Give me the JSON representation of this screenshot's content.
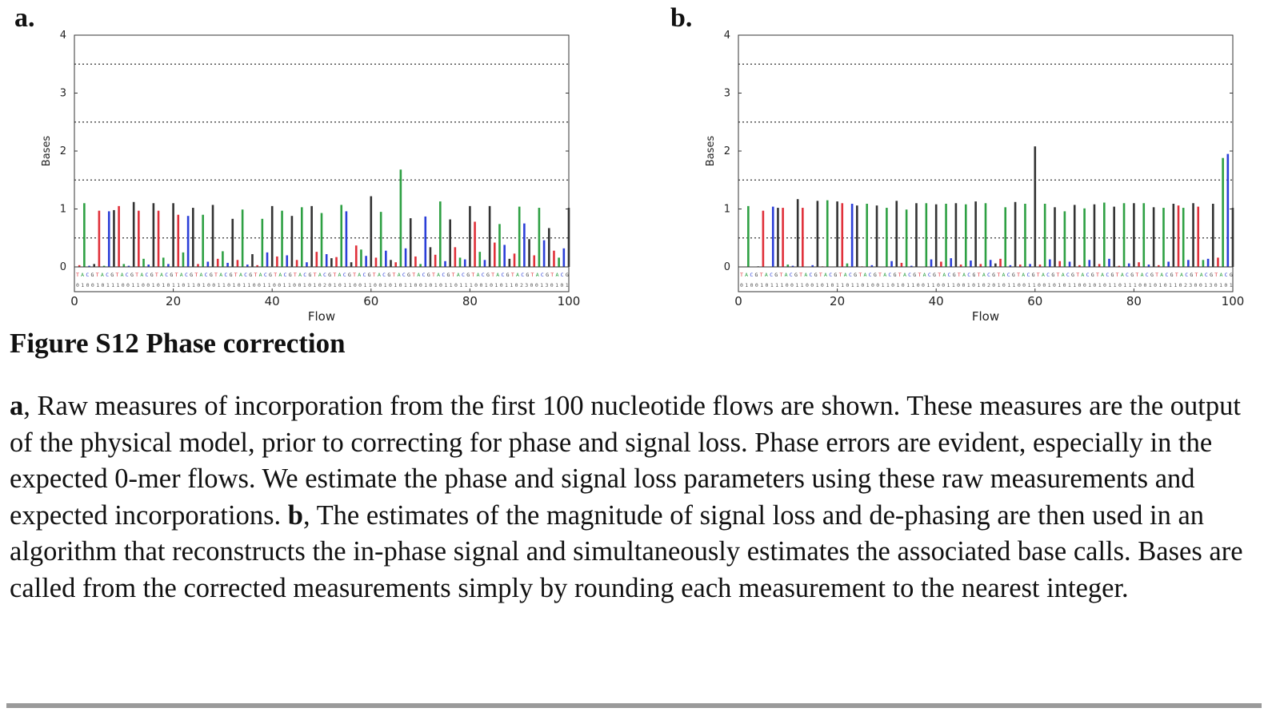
{
  "panels": [
    {
      "letter": "a.",
      "chart_data": {
        "type": "bar",
        "title": "",
        "xlabel": "Flow",
        "ylabel": "Bases",
        "xlim": [
          0,
          100
        ],
        "ylim": [
          0,
          4
        ],
        "xticks": [
          "0",
          "20",
          "40",
          "60",
          "80",
          "100"
        ],
        "yticks": [
          "0",
          "1",
          "2",
          "3",
          "4"
        ],
        "reference_lines": [
          0.5,
          1.5,
          2.5,
          3.5
        ],
        "flow_order": "TACG",
        "flow_colors": {
          "T": "#e0303a",
          "A": "#2ea043",
          "C": "#2b3fd8",
          "G": "#333333"
        },
        "sequence_strip": "TACGTACGTACGTACGTACGTACGTACGTACGTACGTACGTACGTACGTACGTACGTACGTACGTACGTACGTACGTACGTACGTACGTACGTACGTACG",
        "expected_counts": "01001011100110010101101101001101011001100110010102010110011001010110010101101110010101102300130101",
        "values": [
          0.03,
          1.1,
          0.02,
          0.05,
          0.97,
          0.02,
          0.96,
          0.98,
          1.05,
          0.05,
          0.02,
          1.12,
          0.97,
          0.14,
          0.04,
          1.1,
          0.97,
          0.16,
          0.05,
          1.1,
          0.9,
          0.25,
          0.88,
          1.02,
          0.05,
          0.9,
          0.09,
          1.07,
          0.14,
          0.27,
          0.07,
          0.83,
          0.12,
          0.99,
          0.04,
          0.22,
          0.03,
          0.83,
          0.25,
          1.05,
          0.18,
          0.97,
          0.2,
          0.88,
          0.12,
          1.03,
          0.08,
          1.05,
          0.26,
          0.93,
          0.22,
          0.15,
          0.17,
          1.07,
          0.96,
          0.08,
          0.37,
          0.3,
          0.19,
          1.22,
          0.16,
          0.95,
          0.28,
          0.12,
          0.08,
          1.68,
          0.32,
          0.84,
          0.18,
          0.05,
          0.87,
          0.34,
          0.21,
          1.13,
          0.1,
          0.82,
          0.34,
          0.16,
          0.13,
          1.05,
          0.78,
          0.26,
          0.12,
          1.05,
          0.42,
          0.74,
          0.38,
          0.14,
          0.23,
          1.04,
          0.75,
          0.48,
          0.2,
          1.02,
          0.46,
          0.67,
          0.28,
          0.16,
          0.32,
          1.02
        ],
        "display_overrides": "values listed for flows 1-100; color follows flow order TACG"
      }
    },
    {
      "letter": "b.",
      "chart_data": {
        "type": "bar",
        "title": "",
        "xlabel": "Flow",
        "ylabel": "Bases",
        "xlim": [
          0,
          100
        ],
        "ylim": [
          0,
          4
        ],
        "xticks": [
          "0",
          "20",
          "40",
          "60",
          "80",
          "100"
        ],
        "yticks": [
          "0",
          "1",
          "2",
          "3",
          "4"
        ],
        "reference_lines": [
          0.5,
          1.5,
          2.5,
          3.5
        ],
        "flow_order": "TACG",
        "flow_colors": {
          "T": "#e0303a",
          "A": "#2ea043",
          "C": "#2b3fd8",
          "G": "#333333"
        },
        "sequence_strip": "TACGTACGTACGTACGTACGTACGTACGTACGTACGTACGTACGTACGTACGTACGTACGTACGTACGTACGTACGTACGTACGTACGTACGTACGTACG",
        "expected_counts": "01001011100110010101101101001101011001100110010102010110011001010110010101101110010101102300130101",
        "values": [
          0.0,
          1.05,
          0.0,
          0.01,
          0.97,
          0.0,
          1.04,
          1.02,
          1.02,
          0.04,
          0.02,
          1.17,
          1.02,
          0.0,
          0.03,
          1.14,
          0.01,
          1.15,
          0.0,
          1.13,
          1.1,
          0.06,
          1.09,
          1.06,
          0.01,
          1.09,
          0.03,
          1.06,
          0.0,
          1.02,
          0.1,
          1.14,
          0.07,
          0.99,
          0.02,
          1.1,
          0.0,
          1.1,
          0.13,
          1.08,
          0.09,
          1.09,
          0.15,
          1.1,
          0.04,
          1.08,
          0.11,
          1.13,
          0.05,
          1.1,
          0.12,
          0.06,
          0.14,
          1.03,
          0.03,
          1.12,
          0.04,
          1.09,
          0.05,
          2.08,
          0.04,
          1.09,
          0.13,
          1.03,
          0.1,
          0.96,
          0.09,
          1.07,
          0.03,
          1.01,
          0.12,
          1.08,
          0.05,
          1.11,
          0.14,
          1.04,
          0.02,
          1.1,
          0.06,
          1.1,
          0.08,
          1.1,
          0.04,
          1.03,
          0.03,
          1.02,
          0.09,
          1.09,
          1.06,
          1.02,
          0.12,
          1.1,
          1.04,
          0.12,
          0.14,
          1.09,
          0.16,
          1.88,
          1.95,
          1.02
        ],
        "display_overrides": "values listed for flows 1-100; color follows flow order TACG"
      }
    }
  ],
  "figure_title": "Figure S12 Phase correction",
  "caption": {
    "a_label": "a",
    "a_text": ", Raw measures of incorporation from the first 100 nucleotide flows are shown.  These measures are the output of the physical model, prior to correcting for phase and signal loss. Phase errors are evident, especially in the expected 0-mer flows.  We estimate the phase and signal loss parameters using these raw measurements and expected incorporations. ",
    "b_label": "b",
    "b_text": ", The estimates of the magnitude of signal loss and de-phasing are then used in an algorithm that reconstructs the in-phase signal and simultaneously estimates the associated base calls.  Bases are called from the corrected measurements simply by rounding each measurement to the nearest integer."
  }
}
